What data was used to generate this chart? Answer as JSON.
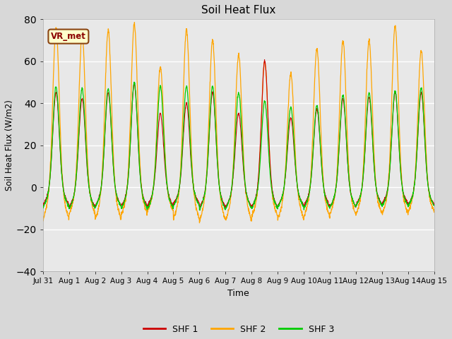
{
  "title": "Soil Heat Flux",
  "xlabel": "Time",
  "ylabel": "Soil Heat Flux (W/m2)",
  "ylim": [
    -40,
    80
  ],
  "yticks": [
    -40,
    -20,
    0,
    20,
    40,
    60,
    80
  ],
  "legend_labels": [
    "SHF 1",
    "SHF 2",
    "SHF 3"
  ],
  "legend_colors": [
    "#cc0000",
    "#ffa500",
    "#00cc00"
  ],
  "annotation_text": "VR_met",
  "annotation_box_facecolor": "#ffffcc",
  "annotation_box_edgecolor": "#8b4513",
  "bg_color": "#e8e8e8",
  "grid_color": "#ffffff",
  "fig_facecolor": "#d8d8d8",
  "num_days": 15,
  "points_per_day": 144,
  "shf1_day_peaks": [
    45,
    42,
    45,
    49,
    35,
    40,
    45,
    35,
    60,
    33,
    37,
    42,
    43,
    45,
    45
  ],
  "shf1_night_troughs": [
    -13,
    -15,
    -14,
    -14,
    -14,
    -12,
    -15,
    -15,
    -15,
    -14,
    -14,
    -15,
    -13,
    -12,
    -13
  ],
  "shf2_day_peaks": [
    76,
    73,
    75,
    78,
    57,
    75,
    70,
    63,
    60,
    54,
    66,
    70,
    70,
    77,
    65
  ],
  "shf2_night_troughs": [
    -24,
    -20,
    -24,
    -20,
    -18,
    -24,
    -25,
    -25,
    -22,
    -24,
    -22,
    -20,
    -20,
    -20,
    -18
  ],
  "shf3_day_peaks": [
    48,
    47,
    47,
    50,
    48,
    48,
    48,
    45,
    41,
    38,
    39,
    44,
    45,
    46,
    47
  ],
  "shf3_night_troughs": [
    -15,
    -16,
    -15,
    -16,
    -16,
    -14,
    -17,
    -16,
    -16,
    -15,
    -16,
    -15,
    -14,
    -14,
    -14
  ],
  "xtick_labels": [
    "Jul 31",
    "Aug 1",
    "Aug 2",
    "Aug 3",
    "Aug 4",
    "Aug 5",
    "Aug 6",
    "Aug 7",
    "Aug 8",
    "Aug 9",
    "Aug 10",
    "Aug 11",
    "Aug 12",
    "Aug 13",
    "Aug 14",
    "Aug 15"
  ],
  "xtick_positions": [
    0,
    1,
    2,
    3,
    4,
    5,
    6,
    7,
    8,
    9,
    10,
    11,
    12,
    13,
    14,
    15
  ]
}
